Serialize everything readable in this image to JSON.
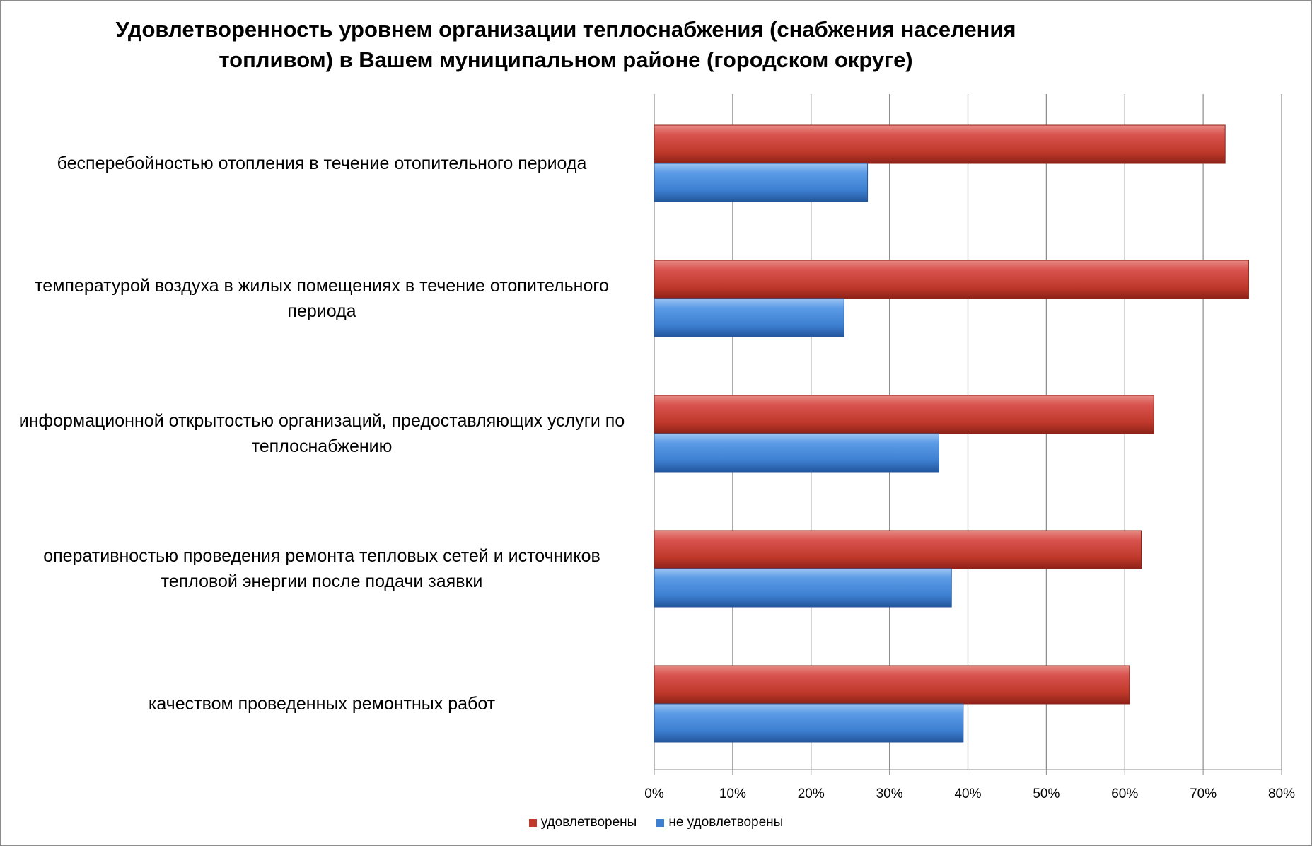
{
  "chart_data": {
    "type": "bar",
    "orientation": "horizontal",
    "title": "Удовлетворенность уровнем организации теплоснабжения (снабжения населения топливом) в Вашем муниципальном районе (городском округе)",
    "categories": [
      "бесперебойностью  отопления в течение отопительного периода",
      "температурой  воздуха в жилых помещениях в течение отопительного периода",
      "информационной открытостью  организаций, предоставляющих услуги по теплоснабжению",
      "оперативностью проведения ремонта тепловых сетей и источников тепловой энергии после подачи заявки",
      "качеством проведенных ремонтных работ"
    ],
    "series": [
      {
        "name": "удовлетворены",
        "color": "#c0392b",
        "values": [
          72.8,
          75.8,
          63.7,
          62.1,
          60.6
        ]
      },
      {
        "name": "не удовлетворены",
        "color": "#3d7fd1",
        "values": [
          27.2,
          24.2,
          36.3,
          37.9,
          39.4
        ]
      }
    ],
    "xlim": [
      0,
      80
    ],
    "xticks": [
      "0%",
      "10%",
      "20%",
      "30%",
      "40%",
      "50%",
      "60%",
      "70%",
      "80%"
    ],
    "grid": true,
    "legend": "bottom"
  }
}
